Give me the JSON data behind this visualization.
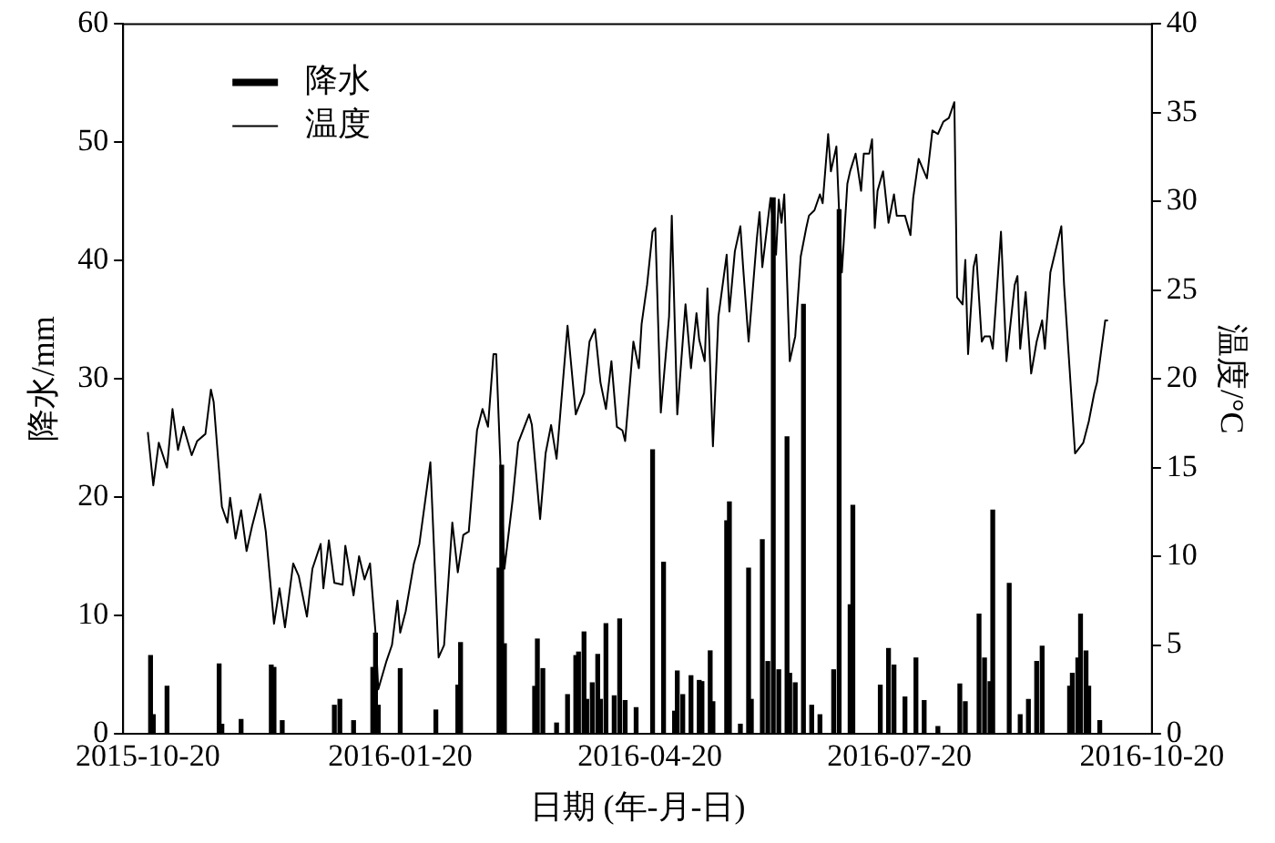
{
  "chart_data": {
    "type": "bar",
    "xlabel": "日期 (年-月-日)",
    "ylabel": "降水/mm",
    "y2label": "温度/°C",
    "xlim": [
      "2015-10-11",
      "2016-10-20"
    ],
    "xticks": [
      "2015-10-20",
      "2016-01-20",
      "2016-04-20",
      "2016-07-20",
      "2016-10-20"
    ],
    "ylim": [
      0,
      60
    ],
    "yticks": [
      0,
      10,
      20,
      30,
      40,
      50,
      60
    ],
    "y2lim": [
      0,
      40
    ],
    "y2ticks": [
      0,
      5,
      10,
      15,
      20,
      25,
      30,
      35,
      40
    ],
    "grid": false,
    "legend": "top left",
    "marker": "none",
    "line_style": "solid",
    "series": [
      {
        "name": "降水",
        "color": "#000000",
        "x": [
          "2015-10-21",
          "2015-10-22",
          "2015-10-27",
          "2015-11-15",
          "2015-11-16",
          "2015-11-23",
          "2015-12-04",
          "2015-12-05",
          "2015-12-08",
          "2015-12-27",
          "2015-12-29",
          "2016-01-03",
          "2016-01-10",
          "2016-01-11",
          "2016-01-12",
          "2016-01-20",
          "2016-02-02",
          "2016-02-10",
          "2016-02-11",
          "2016-02-25",
          "2016-02-26",
          "2016-02-27",
          "2016-03-09",
          "2016-03-10",
          "2016-03-12",
          "2016-03-17",
          "2016-03-21",
          "2016-03-24",
          "2016-03-25",
          "2016-03-27",
          "2016-03-28",
          "2016-03-30",
          "2016-04-01",
          "2016-04-02",
          "2016-04-04",
          "2016-04-07",
          "2016-04-09",
          "2016-04-11",
          "2016-04-15",
          "2016-04-21",
          "2016-04-25",
          "2016-04-29",
          "2016-04-30",
          "2016-05-02",
          "2016-05-05",
          "2016-05-08",
          "2016-05-09",
          "2016-05-12",
          "2016-05-13",
          "2016-05-18",
          "2016-05-19",
          "2016-05-23",
          "2016-05-26",
          "2016-05-27",
          "2016-05-31",
          "2016-06-02",
          "2016-06-04",
          "2016-06-06",
          "2016-06-09",
          "2016-06-10",
          "2016-06-12",
          "2016-06-15",
          "2016-06-18",
          "2016-06-21",
          "2016-06-26",
          "2016-06-28",
          "2016-07-02",
          "2016-07-03",
          "2016-07-13",
          "2016-07-16",
          "2016-07-18",
          "2016-07-22",
          "2016-07-26",
          "2016-07-29",
          "2016-08-03",
          "2016-08-11",
          "2016-08-13",
          "2016-08-18",
          "2016-08-20",
          "2016-08-22",
          "2016-08-23",
          "2016-08-29",
          "2016-09-02",
          "2016-09-05",
          "2016-09-08",
          "2016-09-10",
          "2016-09-20",
          "2016-09-21",
          "2016-09-23",
          "2016-09-24",
          "2016-09-26",
          "2016-09-27",
          "2016-10-01"
        ],
        "values": [
          6.6,
          1.6,
          4.0,
          5.9,
          0.8,
          1.2,
          5.8,
          5.6,
          1.1,
          2.4,
          2.9,
          1.1,
          5.6,
          8.5,
          2.4,
          5.5,
          2.0,
          4.1,
          7.7,
          14.0,
          22.7,
          7.6,
          4.0,
          8.0,
          5.5,
          0.9,
          3.3,
          6.6,
          6.9,
          8.6,
          2.9,
          4.3,
          6.7,
          2.9,
          9.3,
          3.2,
          9.7,
          2.8,
          2.2,
          24.0,
          14.5,
          1.9,
          5.3,
          3.3,
          4.9,
          4.5,
          4.4,
          7.0,
          2.7,
          18.0,
          19.6,
          0.8,
          14.0,
          2.9,
          16.4,
          6.1,
          45.3,
          5.4,
          25.1,
          5.1,
          4.3,
          36.3,
          2.4,
          1.6,
          5.4,
          44.3,
          10.9,
          19.3,
          4.1,
          7.2,
          5.8,
          3.1,
          6.4,
          2.8,
          0.6,
          4.2,
          2.7,
          10.1,
          6.4,
          4.4,
          18.9,
          12.7,
          1.6,
          2.9,
          6.1,
          7.4,
          4.0,
          5.1,
          6.4,
          10.1,
          7.0,
          4.0,
          1.1
        ]
      },
      {
        "name": "温度",
        "type": "line",
        "axis": "y2",
        "color": "#000000",
        "x": [
          "2015-10-20",
          "2015-10-22",
          "2015-10-24",
          "2015-10-27",
          "2015-10-29",
          "2015-10-31",
          "2015-11-02",
          "2015-11-05",
          "2015-11-07",
          "2015-11-10",
          "2015-11-12",
          "2015-11-13",
          "2015-11-16",
          "2015-11-18",
          "2015-11-19",
          "2015-11-21",
          "2015-11-23",
          "2015-11-25",
          "2015-11-27",
          "2015-11-30",
          "2015-12-02",
          "2015-12-05",
          "2015-12-07",
          "2015-12-09",
          "2015-12-12",
          "2015-12-14",
          "2015-12-17",
          "2015-12-19",
          "2015-12-22",
          "2015-12-23",
          "2015-12-25",
          "2015-12-27",
          "2015-12-30",
          "2015-12-31",
          "2016-01-03",
          "2016-01-05",
          "2016-01-07",
          "2016-01-09",
          "2016-01-11",
          "2016-01-12",
          "2016-01-15",
          "2016-01-17",
          "2016-01-19",
          "2016-01-20",
          "2016-01-22",
          "2016-01-25",
          "2016-01-27",
          "2016-01-31",
          "2016-02-03",
          "2016-02-05",
          "2016-02-08",
          "2016-02-10",
          "2016-02-12",
          "2016-02-14",
          "2016-02-17",
          "2016-02-19",
          "2016-02-21",
          "2016-02-23",
          "2016-02-24",
          "2016-02-27",
          "2016-03-01",
          "2016-03-03",
          "2016-03-07",
          "2016-03-08",
          "2016-03-11",
          "2016-03-13",
          "2016-03-15",
          "2016-03-17",
          "2016-03-21",
          "2016-03-24",
          "2016-03-27",
          "2016-03-29",
          "2016-03-31",
          "2016-04-02",
          "2016-04-04",
          "2016-04-06",
          "2016-04-08",
          "2016-04-10",
          "2016-04-11",
          "2016-04-14",
          "2016-04-16",
          "2016-04-17",
          "2016-04-19",
          "2016-04-21",
          "2016-04-22",
          "2016-04-24",
          "2016-04-27",
          "2016-04-28",
          "2016-04-30",
          "2016-05-03",
          "2016-05-05",
          "2016-05-07",
          "2016-05-08",
          "2016-05-10",
          "2016-05-11",
          "2016-05-13",
          "2016-05-15",
          "2016-05-18",
          "2016-05-19",
          "2016-05-21",
          "2016-05-23",
          "2016-05-24",
          "2016-05-26",
          "2016-05-29",
          "2016-05-30",
          "2016-05-31",
          "2016-06-03",
          "2016-06-05",
          "2016-06-06",
          "2016-06-07",
          "2016-06-08",
          "2016-06-10",
          "2016-06-12",
          "2016-06-14",
          "2016-06-16",
          "2016-06-17",
          "2016-06-19",
          "2016-06-21",
          "2016-06-22",
          "2016-06-24",
          "2016-06-25",
          "2016-06-27",
          "2016-06-28",
          "2016-06-29",
          "2016-07-01",
          "2016-07-02",
          "2016-07-04",
          "2016-07-06",
          "2016-07-07",
          "2016-07-09",
          "2016-07-10",
          "2016-07-11",
          "2016-07-12",
          "2016-07-14",
          "2016-07-16",
          "2016-07-18",
          "2016-07-19",
          "2016-07-22",
          "2016-07-24",
          "2016-07-25",
          "2016-07-27",
          "2016-07-30",
          "2016-08-01",
          "2016-08-03",
          "2016-08-05",
          "2016-08-07",
          "2016-08-09",
          "2016-08-10",
          "2016-08-12",
          "2016-08-13",
          "2016-08-14",
          "2016-08-16",
          "2016-08-17",
          "2016-08-19",
          "2016-08-20",
          "2016-08-22",
          "2016-08-23",
          "2016-08-26",
          "2016-08-28",
          "2016-08-31",
          "2016-09-01",
          "2016-09-02",
          "2016-09-04",
          "2016-09-06",
          "2016-09-08",
          "2016-09-10",
          "2016-09-11",
          "2016-09-13",
          "2016-09-17",
          "2016-09-18",
          "2016-09-20",
          "2016-09-22",
          "2016-09-25",
          "2016-09-27",
          "2016-09-29",
          "2016-09-30",
          "2016-10-03",
          "2016-10-04"
        ],
        "values": [
          17.0,
          14.0,
          16.4,
          15.0,
          18.3,
          16.0,
          17.3,
          15.7,
          16.5,
          16.9,
          19.4,
          18.7,
          12.8,
          11.9,
          13.3,
          11.0,
          12.6,
          10.3,
          11.7,
          13.5,
          11.4,
          6.2,
          8.2,
          6.0,
          9.6,
          8.9,
          6.6,
          9.3,
          10.7,
          8.2,
          10.9,
          8.5,
          8.4,
          10.6,
          7.8,
          10.0,
          8.7,
          9.6,
          5.7,
          2.5,
          4.1,
          5.0,
          7.5,
          5.7,
          6.9,
          9.6,
          10.7,
          15.3,
          4.3,
          5.0,
          11.9,
          9.1,
          11.2,
          11.4,
          17.1,
          18.3,
          17.3,
          21.4,
          21.4,
          9.3,
          13.2,
          16.4,
          18.0,
          17.4,
          12.1,
          15.8,
          17.4,
          15.5,
          23.0,
          18.0,
          19.2,
          22.1,
          22.8,
          19.8,
          18.3,
          21.0,
          17.3,
          17.1,
          16.5,
          22.1,
          20.6,
          23.1,
          25.3,
          28.3,
          28.5,
          18.1,
          23.5,
          29.2,
          18.0,
          24.2,
          20.6,
          23.7,
          22.2,
          21.0,
          25.1,
          16.2,
          23.5,
          27.0,
          23.8,
          27.2,
          28.6,
          26.3,
          22.1,
          27.9,
          29.4,
          26.3,
          30.2,
          27.0,
          30.1,
          28.8,
          30.4,
          21.0,
          22.4,
          26.9,
          28.5,
          29.2,
          29.5,
          30.4,
          29.9,
          33.8,
          31.7,
          33.1,
          29.4,
          26.0,
          31.0,
          31.7,
          32.7,
          30.6,
          32.7,
          32.7,
          33.5,
          28.5,
          30.6,
          31.7,
          28.8,
          30.4,
          29.2,
          29.2,
          28.1,
          30.2,
          32.4,
          31.3,
          34.0,
          33.8,
          34.5,
          34.7,
          35.6,
          24.6,
          24.2,
          26.7,
          21.4,
          26.3,
          27.0,
          22.1,
          22.4,
          22.4,
          21.7,
          28.3,
          21.0,
          25.3,
          25.8,
          21.7,
          24.9,
          20.3,
          22.1,
          23.3,
          21.7,
          26.0,
          28.6,
          25.3,
          20.6,
          15.8,
          16.4,
          17.6,
          19.2,
          19.8,
          23.3,
          23.3
        ]
      }
    ]
  }
}
